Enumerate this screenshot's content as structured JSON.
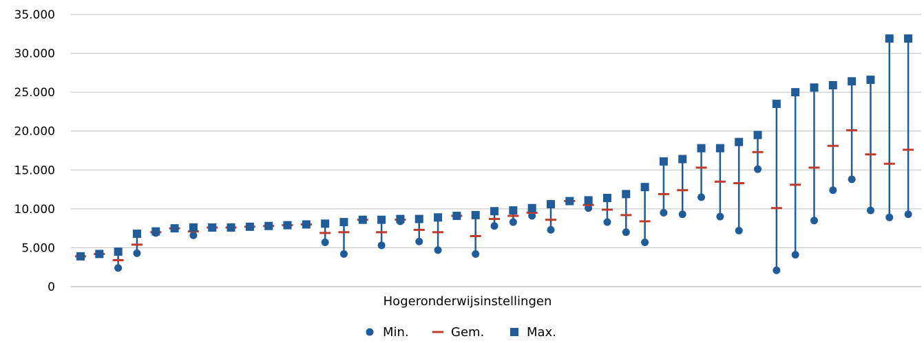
{
  "chart_data": {
    "type": "scatter",
    "xlabel": "Hogeronderwijsinstellingen",
    "ylabel": "",
    "ylim": [
      0,
      35000
    ],
    "yticks": [
      0,
      5000,
      10000,
      15000,
      20000,
      25000,
      30000,
      35000
    ],
    "ytick_labels": [
      "0",
      "5.000",
      "10.000",
      "15.000",
      "20.000",
      "25.000",
      "30.000",
      "35.000"
    ],
    "grid": true,
    "legend_position": "bottom",
    "colors": {
      "min": "#1f5c99",
      "gem": "#c0392b",
      "max": "#1f5c99",
      "grid": "#bfbfbf"
    },
    "series": [
      {
        "name": "Min.",
        "marker": "circle",
        "values": [
          3900,
          4200,
          2400,
          4300,
          6900,
          7500,
          6600,
          7600,
          7600,
          7700,
          7800,
          7900,
          8000,
          5700,
          4200,
          8600,
          5300,
          8400,
          5800,
          4700,
          9100,
          4200,
          7800,
          8300,
          9100,
          7300,
          11000,
          10100,
          8300,
          7000,
          5700,
          9500,
          9300,
          11500,
          9000,
          7200,
          15100,
          2100,
          4100,
          8500,
          12400,
          13800,
          9800,
          8900,
          9300
        ]
      },
      {
        "name": "Gem.",
        "marker": "dash",
        "values": [
          3900,
          4200,
          3400,
          5400,
          7000,
          7500,
          7100,
          7600,
          7600,
          7700,
          7800,
          7900,
          8000,
          6900,
          7000,
          8600,
          7000,
          8600,
          7300,
          7000,
          9100,
          6500,
          8700,
          9100,
          9500,
          8600,
          11000,
          10500,
          9900,
          9200,
          8400,
          11900,
          12400,
          15300,
          13500,
          13300,
          17300,
          10100,
          13100,
          15300,
          18100,
          20100,
          17000,
          15800,
          17600
        ]
      },
      {
        "name": "Max.",
        "marker": "square",
        "values": [
          3900,
          4200,
          4500,
          6800,
          7100,
          7500,
          7600,
          7600,
          7600,
          7700,
          7800,
          7900,
          8000,
          8100,
          8300,
          8600,
          8600,
          8700,
          8700,
          8900,
          9100,
          9200,
          9700,
          9800,
          10100,
          10600,
          11000,
          11100,
          11400,
          11900,
          12800,
          16100,
          16400,
          17800,
          17800,
          18600,
          19500,
          23500,
          25000,
          25600,
          25900,
          26400,
          26600,
          31900,
          31900
        ]
      }
    ]
  }
}
